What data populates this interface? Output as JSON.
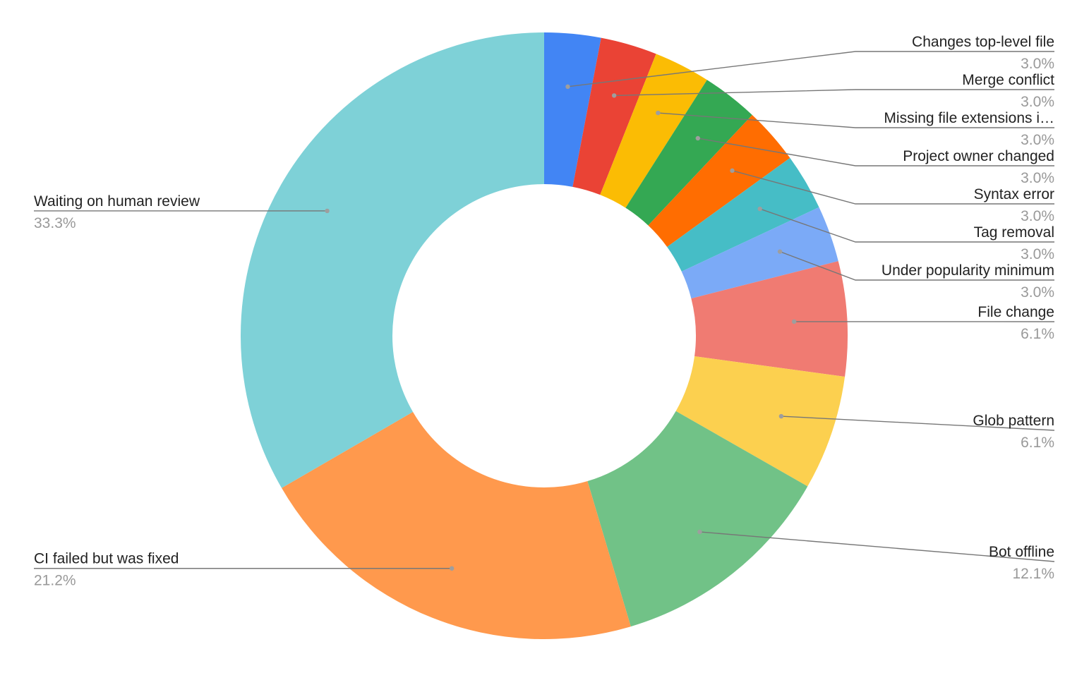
{
  "chart_data": {
    "type": "pie",
    "donut": true,
    "title": "",
    "legend": "none",
    "slices": [
      {
        "label": "Changes top-level file",
        "value": 3.0,
        "value_label": "3.0%",
        "color": "#4285F4"
      },
      {
        "label": "Merge conflict",
        "value": 3.0,
        "value_label": "3.0%",
        "color": "#EA4335"
      },
      {
        "label": "Missing file extensions i…",
        "value": 3.0,
        "value_label": "3.0%",
        "color": "#FBBC04"
      },
      {
        "label": "Project owner changed",
        "value": 3.0,
        "value_label": "3.0%",
        "color": "#34A853"
      },
      {
        "label": "Syntax error",
        "value": 3.0,
        "value_label": "3.0%",
        "color": "#FF6D01"
      },
      {
        "label": "Tag removal",
        "value": 3.0,
        "value_label": "3.0%",
        "color": "#46BDC6"
      },
      {
        "label": "Under popularity minimum",
        "value": 3.0,
        "value_label": "3.0%",
        "color": "#7BAAF7"
      },
      {
        "label": "File change",
        "value": 6.1,
        "value_label": "6.1%",
        "color": "#F07B72"
      },
      {
        "label": "Glob pattern",
        "value": 6.1,
        "value_label": "6.1%",
        "color": "#FCD04F"
      },
      {
        "label": "Bot offline",
        "value": 12.1,
        "value_label": "12.1%",
        "color": "#71C287"
      },
      {
        "label": "CI failed but was fixed",
        "value": 21.2,
        "value_label": "21.2%",
        "color": "#FF994D"
      },
      {
        "label": "Waiting on human review",
        "value": 33.3,
        "value_label": "33.3%",
        "color": "#7ED1D7"
      }
    ]
  }
}
